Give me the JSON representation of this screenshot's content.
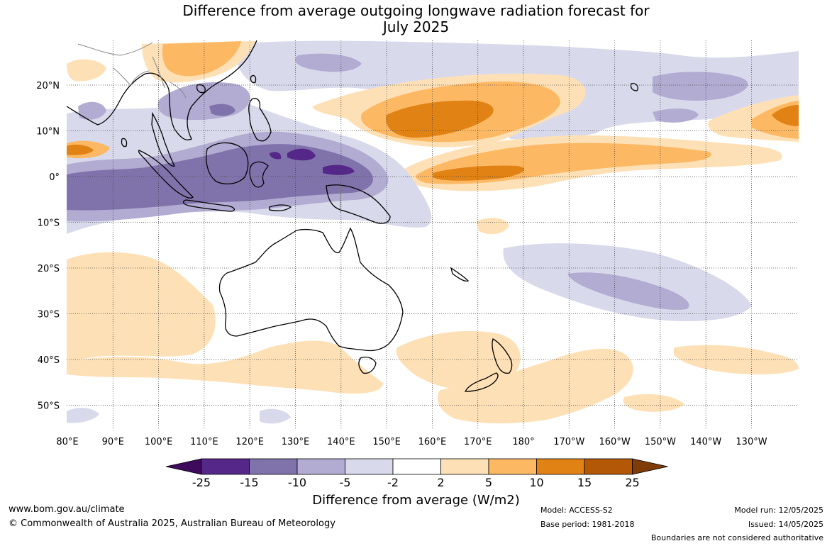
{
  "title_line1": "Difference from average outgoing longwave radiation forecast for",
  "title_line2": "July 2025",
  "map": {
    "lat_labels": [
      "20°N",
      "10°N",
      "0°",
      "10°S",
      "20°S",
      "30°S",
      "40°S",
      "50°S"
    ],
    "lon_labels": [
      "80°E",
      "90°E",
      "100°E",
      "110°E",
      "120°E",
      "130°E",
      "140°E",
      "150°E",
      "160°E",
      "170°E",
      "180°",
      "170°W",
      "160°W",
      "150°W",
      "140°W",
      "130°W"
    ]
  },
  "colorbar": {
    "ticks": [
      "-25",
      "-15",
      "-10",
      "-5",
      "-2",
      "2",
      "5",
      "10",
      "15",
      "25"
    ],
    "colors": [
      "#3d0a5c",
      "#542788",
      "#8073ac",
      "#b2abd2",
      "#d8daeb",
      "#ffffff",
      "#fee0b6",
      "#fdb863",
      "#e08214",
      "#b35806",
      "#7f3b08"
    ],
    "label": "Difference from average (W/m2)"
  },
  "footer": {
    "url": "www.bom.gov.au/climate",
    "copyright": "© Commonwealth of Australia 2025, Australian Bureau of Meteorology",
    "model": "Model: ACCESS-S2",
    "base_period": "Base period: 1981-2018",
    "model_run": "Model run: 12/05/2025",
    "issued": "Issued: 14/05/2025",
    "disclaimer": "Boundaries are not considered authoritative"
  }
}
